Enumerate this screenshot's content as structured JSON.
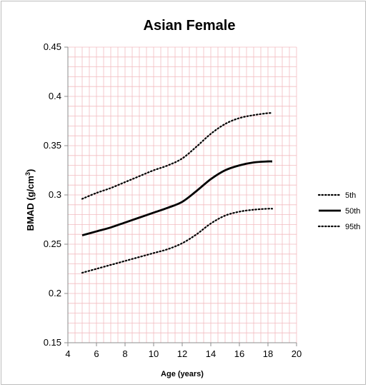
{
  "chart_data": {
    "type": "line",
    "title": "Asian Female",
    "xlabel": "Age (years)",
    "ylabel_main": "BMAD (g/cm",
    "ylabel_sup": "3",
    "ylabel_close": ")",
    "xlim": [
      4,
      20
    ],
    "ylim": [
      0.15,
      0.45
    ],
    "xticks": [
      4,
      6,
      8,
      10,
      12,
      14,
      16,
      18,
      20
    ],
    "xtick_labels": [
      "4",
      "6",
      "8",
      "10",
      "12",
      "14",
      "16",
      "18",
      "20"
    ],
    "yticks": [
      0.15,
      0.2,
      0.25,
      0.3,
      0.35,
      0.4,
      0.45
    ],
    "ytick_labels": [
      "0.15",
      "0.2",
      "0.25",
      "0.3",
      "0.35",
      "0.4",
      "0.45"
    ],
    "grid": true,
    "grid_color": "#f2bcc0",
    "legend_position": "right",
    "series": [
      {
        "name": "5th",
        "style": "dotted",
        "color": "#000000",
        "x": [
          5,
          6,
          7,
          8,
          9,
          10,
          11,
          12,
          13,
          14,
          15,
          16,
          17,
          18,
          18.3
        ],
        "y": [
          0.296,
          0.302,
          0.307,
          0.313,
          0.319,
          0.325,
          0.33,
          0.337,
          0.349,
          0.362,
          0.372,
          0.378,
          0.381,
          0.383,
          0.383
        ]
      },
      {
        "name": "50th",
        "style": "solid",
        "color": "#000000",
        "x": [
          5,
          6,
          7,
          8,
          9,
          10,
          11,
          12,
          13,
          14,
          15,
          16,
          17,
          18,
          18.3
        ],
        "y": [
          0.259,
          0.263,
          0.267,
          0.272,
          0.277,
          0.282,
          0.287,
          0.293,
          0.304,
          0.316,
          0.325,
          0.33,
          0.333,
          0.334,
          0.334
        ]
      },
      {
        "name": "95th",
        "style": "dotted",
        "color": "#000000",
        "x": [
          5,
          6,
          7,
          8,
          9,
          10,
          11,
          12,
          13,
          14,
          15,
          16,
          17,
          18,
          18.3
        ],
        "y": [
          0.221,
          0.225,
          0.229,
          0.233,
          0.237,
          0.241,
          0.245,
          0.251,
          0.26,
          0.271,
          0.279,
          0.283,
          0.285,
          0.286,
          0.286
        ]
      }
    ]
  }
}
